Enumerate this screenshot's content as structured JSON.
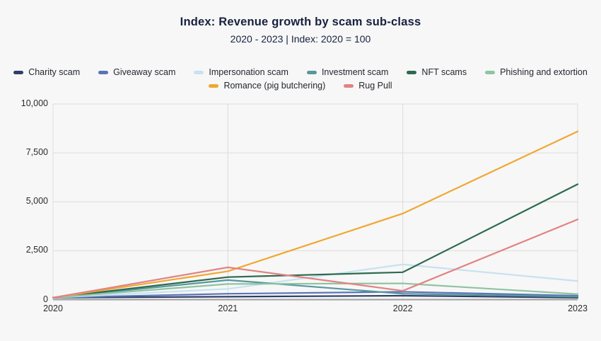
{
  "chart_data": {
    "type": "line",
    "title": "Index: Revenue growth by scam sub-class",
    "subtitle": "2020 - 2023 | Index: 2020 = 100",
    "x": [
      2020,
      2021,
      2022,
      2023
    ],
    "x_labels": [
      "2020",
      "2021",
      "2022",
      "2023"
    ],
    "ylim": [
      0,
      10000
    ],
    "yticks": [
      0,
      2500,
      5000,
      7500,
      10000
    ],
    "ytick_labels": [
      "0",
      "2,500",
      "5,000",
      "7,500",
      "10,000"
    ],
    "grid": {
      "horizontal": "at every ytick",
      "vertical": "at 2021 and 2022 plus plot borders"
    },
    "legend_position": "top",
    "series": [
      {
        "name": "Charity scam",
        "color": "#2d3f68",
        "values": [
          100,
          150,
          200,
          100
        ]
      },
      {
        "name": "Giveaway scam",
        "color": "#5b74b9",
        "values": [
          100,
          300,
          400,
          200
        ]
      },
      {
        "name": "Impersonation scam",
        "color": "#c7e2f0",
        "values": [
          100,
          550,
          1800,
          950
        ]
      },
      {
        "name": "Investment scam",
        "color": "#58979d",
        "values": [
          100,
          1000,
          300,
          150
        ]
      },
      {
        "name": "NFT scams",
        "color": "#2d6a4f",
        "values": [
          100,
          1150,
          1400,
          5900
        ]
      },
      {
        "name": "Phishing and extortion",
        "color": "#8fc3a2",
        "values": [
          100,
          800,
          830,
          280
        ]
      },
      {
        "name": "Romance (pig butchering)",
        "color": "#f0a72f",
        "values": [
          100,
          1450,
          4400,
          8600
        ]
      },
      {
        "name": "Rug Pull",
        "color": "#e28382",
        "values": [
          100,
          1650,
          450,
          4100
        ]
      }
    ]
  },
  "colors": {
    "background": "#f7f7f7",
    "gridline": "#dcdcdc",
    "axis_line": "#9e9e9e",
    "text": "#16213e"
  }
}
